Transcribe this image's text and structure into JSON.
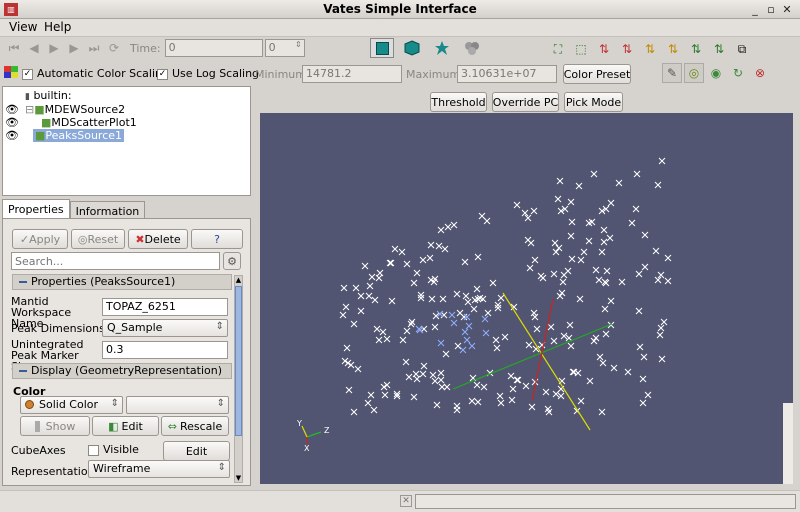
{
  "window": {
    "title": "Vates Simple Interface"
  },
  "menu": [
    "View",
    "Help"
  ],
  "time": {
    "label": "Time:",
    "value": "0",
    "step": "0"
  },
  "color_scale": {
    "auto_label": "Automatic Color Scaling",
    "log_label": "Use Log Scaling",
    "min_label": "Minimum",
    "min_value": "14781.2",
    "max_label": "Maximum",
    "max_value": "3.10631e+07",
    "preset_label": "Color Preset"
  },
  "view_buttons": {
    "threshold": "Threshold",
    "override_pc": "Override PC",
    "pick_mode": "Pick Mode"
  },
  "pipeline": {
    "root": "builtin:",
    "items": [
      "MDEWSource2",
      "MDScatterPlot1",
      "PeaksSource1"
    ]
  },
  "tabs": [
    "Properties",
    "Information"
  ],
  "actions": {
    "apply": "Apply",
    "reset": "Reset",
    "delete": "Delete",
    "help": "?"
  },
  "search": {
    "placeholder": "Search..."
  },
  "properties": {
    "section": "Properties (PeaksSource1)",
    "workspace_label": "Mantid Workspace Name",
    "workspace_value": "TOPAZ_6251",
    "dims_label": "Peak Dimensions",
    "dims_value": "Q_Sample",
    "marker_label": "Unintegrated Peak Marker Size",
    "marker_value": "0.3"
  },
  "display": {
    "section": "Display (GeometryRepresentation)",
    "color_label": "Color",
    "color_value": "Solid Color",
    "edit": "Edit",
    "show": "Show",
    "rescale": "Rescale",
    "cubeaxes_label": "CubeAxes",
    "visible_label": "Visible",
    "cube_edit": "Edit",
    "representation_label": "Representation",
    "representation_value": "Wireframe"
  },
  "axes": {
    "x": "X",
    "y": "Y",
    "z": "Z"
  },
  "colors": {
    "viewport": "#525571",
    "marker": "#ffffff",
    "selected": "#3d72c8",
    "axis_x": "#22aa22",
    "axis_y": "#dddd00",
    "axis_z": "#cc2222"
  }
}
